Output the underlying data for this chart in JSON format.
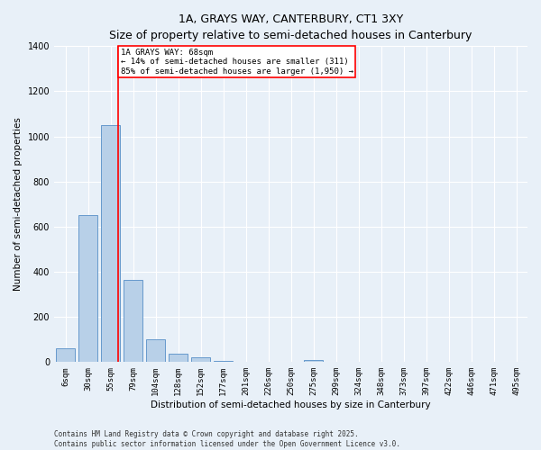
{
  "title": "1A, GRAYS WAY, CANTERBURY, CT1 3XY",
  "subtitle": "Size of property relative to semi-detached houses in Canterbury",
  "xlabel": "Distribution of semi-detached houses by size in Canterbury",
  "ylabel": "Number of semi-detached properties",
  "bar_color": "#b8d0e8",
  "bar_edge_color": "#6699cc",
  "background_color": "#e8f0f8",
  "fig_background_color": "#e8f0f8",
  "grid_color": "#ffffff",
  "categories": [
    "6sqm",
    "30sqm",
    "55sqm",
    "79sqm",
    "104sqm",
    "128sqm",
    "152sqm",
    "177sqm",
    "201sqm",
    "226sqm",
    "250sqm",
    "275sqm",
    "299sqm",
    "324sqm",
    "348sqm",
    "373sqm",
    "397sqm",
    "422sqm",
    "446sqm",
    "471sqm",
    "495sqm"
  ],
  "values": [
    62,
    650,
    1050,
    365,
    102,
    38,
    20,
    6,
    1,
    0,
    0,
    10,
    0,
    0,
    0,
    0,
    0,
    0,
    0,
    0,
    0
  ],
  "ylim": [
    0,
    1400
  ],
  "yticks": [
    0,
    200,
    400,
    600,
    800,
    1000,
    1200,
    1400
  ],
  "red_line_x": 2.33,
  "annotation_title": "1A GRAYS WAY: 68sqm",
  "annotation_line1": "← 14% of semi-detached houses are smaller (311)",
  "annotation_line2": "85% of semi-detached houses are larger (1,950) →",
  "footer1": "Contains HM Land Registry data © Crown copyright and database right 2025.",
  "footer2": "Contains public sector information licensed under the Open Government Licence v3.0.",
  "title_fontsize": 9,
  "subtitle_fontsize": 8,
  "axis_label_fontsize": 7.5,
  "tick_fontsize": 6.5,
  "annotation_fontsize": 6.5,
  "footer_fontsize": 5.5
}
